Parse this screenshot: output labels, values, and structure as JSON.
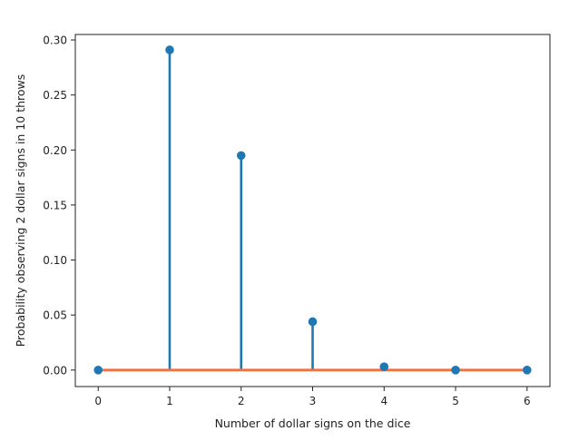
{
  "chart_data": {
    "type": "stem",
    "xlabel": "Number of dollar signs on the dice",
    "ylabel": "Probability observing 2 dollar signs in 10 throws",
    "xlim": [
      -0.32,
      6.32
    ],
    "ylim": [
      -0.015,
      0.305
    ],
    "x_ticks": [
      0,
      1,
      2,
      3,
      4,
      5,
      6
    ],
    "y_ticks": [
      0.0,
      0.05,
      0.1,
      0.15,
      0.2,
      0.25,
      0.3
    ],
    "y_tick_labels": [
      "0.00",
      "0.05",
      "0.10",
      "0.15",
      "0.20",
      "0.25",
      "0.30"
    ],
    "grid": false,
    "series": [
      {
        "x": [
          0,
          1,
          2,
          3,
          4,
          5,
          6
        ],
        "values": [
          0.0,
          0.291,
          0.195,
          0.044,
          0.003,
          0.0,
          0.0
        ],
        "color": "#1f77b4"
      }
    ],
    "baseline": {
      "y": 0.0,
      "color": "#f07040"
    }
  }
}
